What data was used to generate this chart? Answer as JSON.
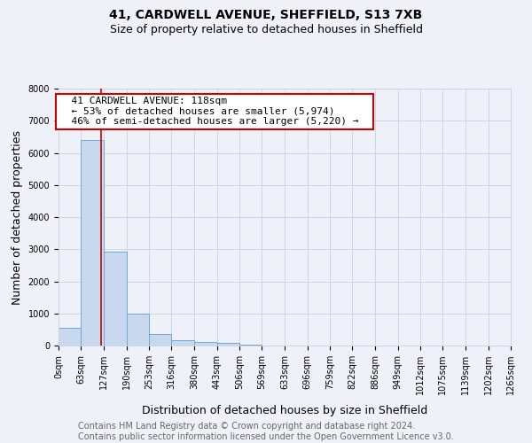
{
  "title": "41, CARDWELL AVENUE, SHEFFIELD, S13 7XB",
  "subtitle": "Size of property relative to detached houses in Sheffield",
  "xlabel": "Distribution of detached houses by size in Sheffield",
  "ylabel": "Number of detached properties",
  "bar_values": [
    550,
    6400,
    2920,
    1000,
    360,
    160,
    100,
    70,
    20,
    5,
    3,
    2,
    1,
    1,
    0,
    0,
    0,
    0,
    0,
    0
  ],
  "bar_edges": [
    0,
    63,
    127,
    190,
    253,
    316,
    380,
    443,
    506,
    569,
    633,
    696,
    759,
    822,
    886,
    949,
    1012,
    1075,
    1139,
    1202,
    1265
  ],
  "xtick_labels": [
    "0sqm",
    "63sqm",
    "127sqm",
    "190sqm",
    "253sqm",
    "316sqm",
    "380sqm",
    "443sqm",
    "506sqm",
    "569sqm",
    "633sqm",
    "696sqm",
    "759sqm",
    "822sqm",
    "886sqm",
    "949sqm",
    "1012sqm",
    "1075sqm",
    "1139sqm",
    "1202sqm",
    "1265sqm"
  ],
  "bar_color": "#c8d8ee",
  "bar_edge_color": "#6aaad4",
  "grid_color": "#cdd5e3",
  "property_line_x": 118,
  "property_line_color": "#cc0000",
  "annotation_text": "  41 CARDWELL AVENUE: 118sqm  \n  ← 53% of detached houses are smaller (5,974)  \n  46% of semi-detached houses are larger (5,220) →  ",
  "annotation_box_color": "#ffffff",
  "annotation_box_edge_color": "#cc0000",
  "ylim": [
    0,
    8000
  ],
  "yticks": [
    0,
    1000,
    2000,
    3000,
    4000,
    5000,
    6000,
    7000,
    8000
  ],
  "footer_line1": "Contains HM Land Registry data © Crown copyright and database right 2024.",
  "footer_line2": "Contains public sector information licensed under the Open Government Licence v3.0.",
  "title_fontsize": 10,
  "subtitle_fontsize": 9,
  "axis_label_fontsize": 9,
  "tick_fontsize": 7,
  "annotation_fontsize": 8,
  "footer_fontsize": 7,
  "bg_color": "#eef2f8"
}
